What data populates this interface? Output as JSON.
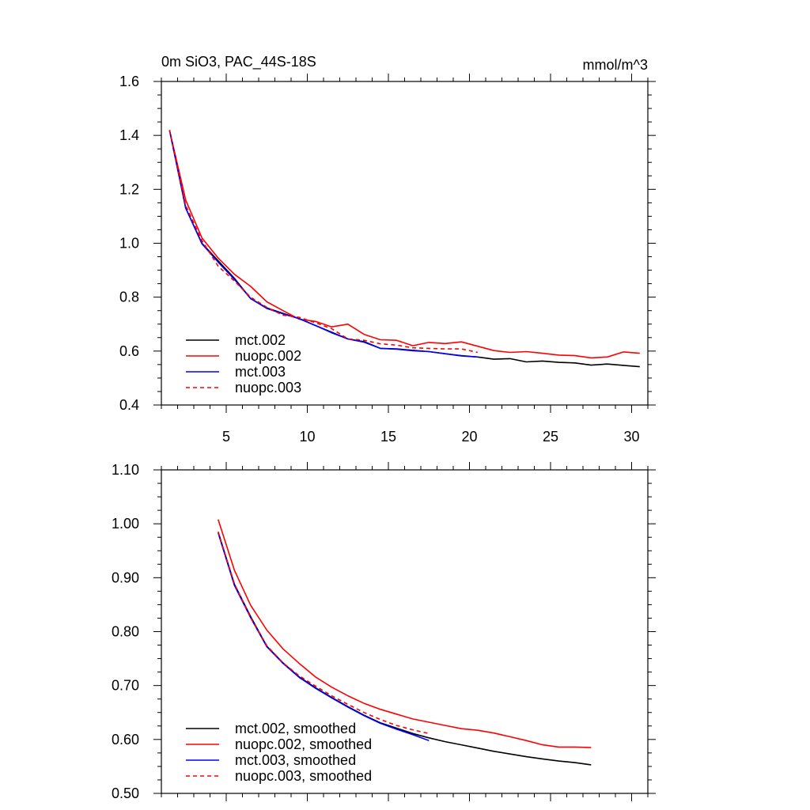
{
  "chart_data": [
    {
      "type": "line",
      "title": "0m SiO3, PAC_44S-18S",
      "units": "mmol/m^3",
      "xlim": [
        1,
        31
      ],
      "ylim": [
        0.4,
        1.6
      ],
      "xticks": [
        5,
        10,
        15,
        20,
        25,
        30
      ],
      "yticks": [
        0.4,
        0.6,
        0.8,
        1.0,
        1.2,
        1.4,
        1.6
      ],
      "ytick_decimals": 1,
      "show_xtick_labels": true,
      "legend_position": "bottom-left",
      "series": [
        {
          "name": "mct.002",
          "color": "#000000",
          "dash": "solid",
          "x": [
            1.5,
            2.5,
            3.5,
            4.5,
            5.5,
            6.5,
            7.5,
            8.5,
            9.5,
            10.5,
            11.5,
            12.5,
            13.5,
            14.5,
            15.5,
            16.5,
            17.5,
            18.5,
            19.5,
            20.5,
            21.5,
            22.5,
            23.5,
            24.5,
            25.5,
            26.5,
            27.5,
            28.5,
            29.5,
            30.5
          ],
          "y": [
            1.42,
            1.13,
            1.0,
            0.935,
            0.87,
            0.795,
            0.76,
            0.74,
            0.72,
            0.695,
            0.67,
            0.645,
            0.635,
            0.61,
            0.608,
            0.603,
            0.598,
            0.59,
            0.582,
            0.578,
            0.57,
            0.572,
            0.56,
            0.563,
            0.558,
            0.556,
            0.548,
            0.552,
            0.547,
            0.542
          ]
        },
        {
          "name": "nuopc.002",
          "color": "#ff0000",
          "dash": "solid",
          "x": [
            1.5,
            2.5,
            3.5,
            4.5,
            5.5,
            6.5,
            7.5,
            8.5,
            9.5,
            10.5,
            11.5,
            12.5,
            13.5,
            14.5,
            15.5,
            16.5,
            17.5,
            18.5,
            19.5,
            20.5,
            21.5,
            22.5,
            23.5,
            24.5,
            25.5,
            26.5,
            27.5,
            28.5,
            29.5,
            30.5
          ],
          "y": [
            1.42,
            1.16,
            1.02,
            0.945,
            0.885,
            0.84,
            0.783,
            0.75,
            0.718,
            0.71,
            0.69,
            0.7,
            0.662,
            0.642,
            0.64,
            0.62,
            0.632,
            0.628,
            0.634,
            0.618,
            0.602,
            0.595,
            0.598,
            0.592,
            0.585,
            0.583,
            0.575,
            0.578,
            0.597,
            0.592
          ]
        },
        {
          "name": "mct.003",
          "color": "#0000ff",
          "dash": "solid",
          "x": [
            1.5,
            2.5,
            3.5,
            4.5,
            5.5,
            6.5,
            7.5,
            8.5,
            9.5,
            10.5,
            11.5,
            12.5,
            13.5,
            14.5,
            15.5,
            16.5,
            17.5,
            18.5,
            19.5,
            20.5
          ],
          "y": [
            1.42,
            1.13,
            0.998,
            0.93,
            0.866,
            0.795,
            0.758,
            0.738,
            0.72,
            0.695,
            0.668,
            0.645,
            0.633,
            0.61,
            0.607,
            0.601,
            0.598,
            0.59,
            0.583,
            0.578
          ]
        },
        {
          "name": "nuopc.003",
          "color": "#ff0000",
          "dash": "dashed",
          "x": [
            1.5,
            2.5,
            3.5,
            4.5,
            5.5,
            6.5,
            7.5,
            8.5,
            9.5,
            10.5,
            11.5,
            12.5,
            13.5,
            14.5,
            15.5,
            16.5,
            17.5,
            18.5,
            19.5,
            20.5
          ],
          "y": [
            1.42,
            1.14,
            1.01,
            0.915,
            0.86,
            0.8,
            0.762,
            0.733,
            0.725,
            0.705,
            0.683,
            0.645,
            0.64,
            0.627,
            0.622,
            0.612,
            0.61,
            0.608,
            0.608,
            0.595
          ]
        }
      ]
    },
    {
      "type": "line",
      "title": "",
      "units": "",
      "xlim": [
        1,
        31
      ],
      "ylim": [
        0.5,
        1.1
      ],
      "xticks": [
        5,
        10,
        15,
        20,
        25,
        30
      ],
      "yticks": [
        0.5,
        0.6,
        0.7,
        0.8,
        0.9,
        1.0,
        1.1
      ],
      "ytick_decimals": 2,
      "show_xtick_labels": false,
      "legend_position": "bottom-left",
      "series": [
        {
          "name": "mct.002, smoothed",
          "color": "#000000",
          "dash": "solid",
          "x": [
            4.5,
            5.5,
            6.5,
            7.5,
            8.5,
            9.5,
            10.5,
            11.5,
            12.5,
            13.5,
            14.5,
            15.5,
            16.5,
            17.5,
            18.5,
            19.5,
            20.5,
            21.5,
            22.5,
            23.5,
            24.5,
            25.5,
            26.5,
            27.5
          ],
          "y": [
            0.985,
            0.888,
            0.828,
            0.773,
            0.742,
            0.716,
            0.696,
            0.678,
            0.661,
            0.645,
            0.631,
            0.621,
            0.611,
            0.603,
            0.596,
            0.59,
            0.584,
            0.578,
            0.573,
            0.568,
            0.564,
            0.56,
            0.557,
            0.553
          ]
        },
        {
          "name": "nuopc.002, smoothed",
          "color": "#ff0000",
          "dash": "solid",
          "x": [
            4.5,
            5.5,
            6.5,
            7.5,
            8.5,
            9.5,
            10.5,
            11.5,
            12.5,
            13.5,
            14.5,
            15.5,
            16.5,
            17.5,
            18.5,
            19.5,
            20.5,
            21.5,
            22.5,
            23.5,
            24.5,
            25.5,
            26.5,
            27.5
          ],
          "y": [
            1.008,
            0.914,
            0.849,
            0.803,
            0.768,
            0.741,
            0.716,
            0.697,
            0.681,
            0.667,
            0.656,
            0.647,
            0.638,
            0.632,
            0.626,
            0.62,
            0.617,
            0.612,
            0.605,
            0.598,
            0.59,
            0.586,
            0.586,
            0.585
          ]
        },
        {
          "name": "mct.003, smoothed",
          "color": "#0000ff",
          "dash": "solid",
          "x": [
            4.5,
            5.5,
            6.5,
            7.5,
            8.5,
            9.5,
            10.5,
            11.5,
            12.5,
            13.5,
            14.5,
            15.5,
            16.5,
            17.5
          ],
          "y": [
            0.983,
            0.886,
            0.826,
            0.772,
            0.741,
            0.715,
            0.695,
            0.677,
            0.66,
            0.644,
            0.63,
            0.619,
            0.609,
            0.598
          ]
        },
        {
          "name": "nuopc.003, smoothed",
          "color": "#ff0000",
          "dash": "dashed",
          "x": [
            4.5,
            5.5,
            6.5,
            7.5,
            8.5,
            9.5,
            10.5,
            11.5,
            12.5,
            13.5,
            14.5,
            15.5,
            16.5,
            17.5
          ],
          "y": [
            0.985,
            0.889,
            0.826,
            0.774,
            0.742,
            0.718,
            0.699,
            0.681,
            0.665,
            0.65,
            0.637,
            0.626,
            0.618,
            0.611
          ]
        }
      ]
    }
  ]
}
